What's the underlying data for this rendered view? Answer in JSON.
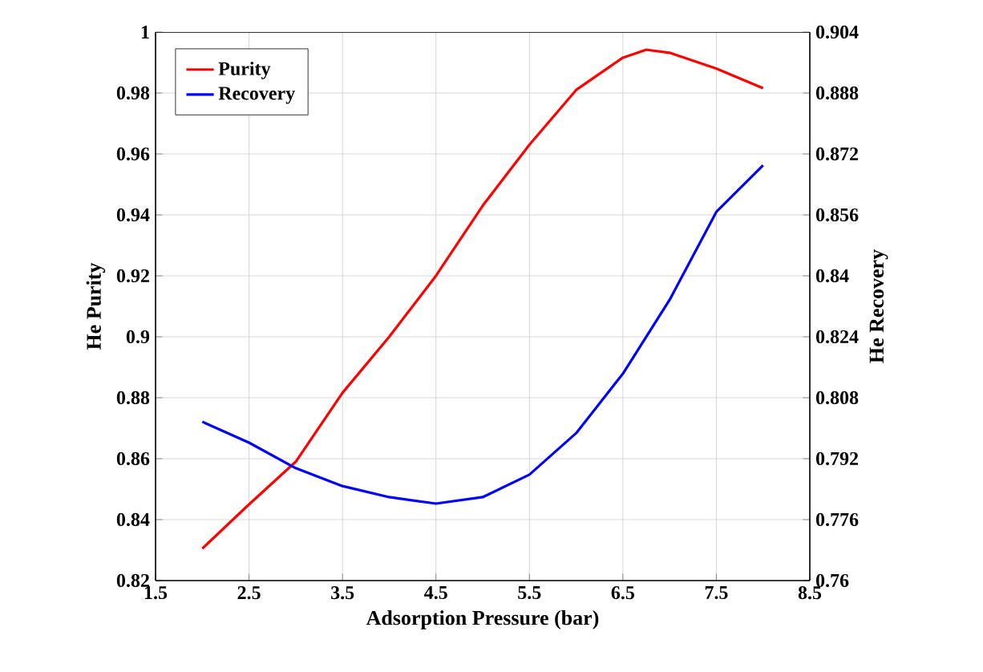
{
  "chart_data": {
    "type": "line",
    "xlabel": "Adsorption Pressure (bar)",
    "ylabel": "He Purity",
    "y2label": "He Recovery",
    "xlim": [
      1.5,
      8.5
    ],
    "xticks": [
      1.5,
      2.5,
      3.5,
      4.5,
      5.5,
      6.5,
      7.5,
      8.5
    ],
    "ylim": [
      0.82,
      1
    ],
    "yticks": [
      0.82,
      0.84,
      0.86,
      0.88,
      0.9,
      0.92,
      0.94,
      0.96,
      0.98,
      1
    ],
    "y2lim": [
      0.76,
      0.904
    ],
    "y2ticks": [
      0.76,
      0.776,
      0.792,
      0.808,
      0.824,
      0.84,
      0.856,
      0.872,
      0.888,
      0.904
    ],
    "grid": true,
    "legend": "top left",
    "line_style": "solid",
    "marker": "none",
    "series": [
      {
        "name": "Purity",
        "color": "#ff0000",
        "x": [
          2,
          2.5,
          3,
          3.5,
          4,
          4.5,
          5,
          5.5,
          6,
          6.5,
          6.75,
          7,
          7.5,
          8
        ],
        "values": [
          0.8305,
          0.845,
          0.859,
          0.8816,
          0.9,
          0.92,
          0.943,
          0.963,
          0.981,
          0.9916,
          0.9942,
          0.9932,
          0.988,
          0.9816
        ]
      },
      {
        "name": "Recovery",
        "color": "#0000ff",
        "axis": "y2",
        "x": [
          2,
          2.5,
          3,
          3.5,
          4,
          4.5,
          5,
          5.5,
          6,
          6.5,
          7,
          7.5,
          8
        ],
        "values": [
          0.8017,
          0.7962,
          0.7895,
          0.7848,
          0.7819,
          0.7802,
          0.7819,
          0.7878,
          0.7987,
          0.8143,
          0.8337,
          0.8568,
          0.869
        ]
      }
    ]
  }
}
